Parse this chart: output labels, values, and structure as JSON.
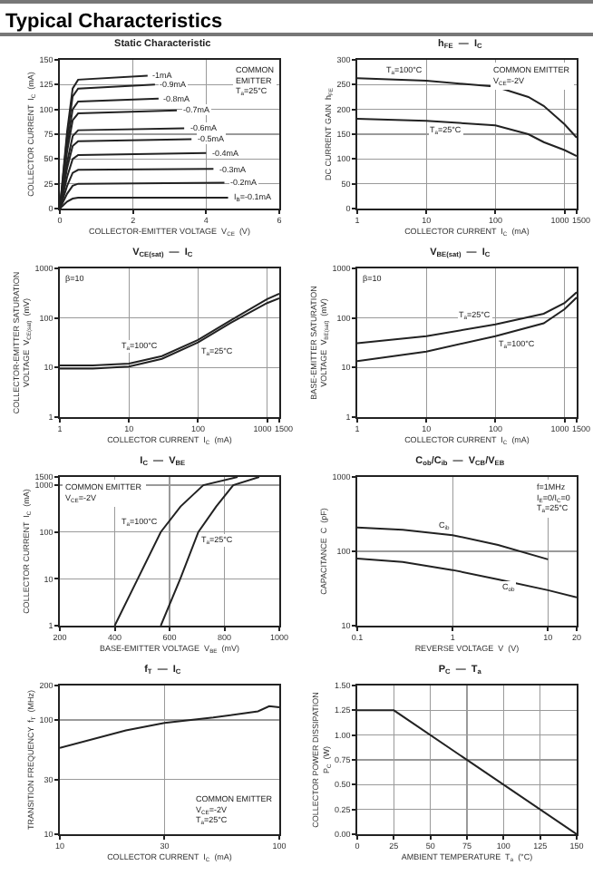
{
  "chart_data": [
    {
      "type": "other",
      "title": "Typical Characteristics"
    },
    {
      "type": "line",
      "title": "Static Characteristic",
      "xlabel": "COLLECTOR-EMITTER VOLTAGE  V$_{CE}$  (V)",
      "ylabel": "COLLECTOR CURRENT  I$_{C}$  (mA)",
      "xlim": [
        0,
        6
      ],
      "xticks": [
        0,
        2,
        4,
        6
      ],
      "ylim": [
        0,
        150
      ],
      "yticks": [
        0,
        25,
        50,
        75,
        100,
        125,
        150
      ],
      "grid": true,
      "marker": "none",
      "series": [
        {
          "color": "#222222",
          "x": [
            0,
            0.2,
            0.35,
            0.5,
            2.4
          ],
          "values": [
            0,
            78,
            121,
            130,
            134
          ]
        },
        {
          "color": "#222222",
          "x": [
            0,
            0.2,
            0.35,
            0.5,
            2.6
          ],
          "values": [
            0,
            73,
            113,
            121,
            125
          ]
        },
        {
          "color": "#222222",
          "x": [
            0,
            0.2,
            0.35,
            0.5,
            2.7
          ],
          "values": [
            0,
            65,
            100,
            108,
            111
          ]
        },
        {
          "color": "#222222",
          "x": [
            0,
            0.2,
            0.35,
            0.5,
            3.2
          ],
          "values": [
            0,
            58,
            89,
            96,
            99
          ]
        },
        {
          "color": "#222222",
          "x": [
            0,
            0.2,
            0.35,
            0.5,
            3.4
          ],
          "values": [
            0,
            47,
            73,
            79,
            81
          ]
        },
        {
          "color": "#222222",
          "x": [
            0,
            0.2,
            0.35,
            0.5,
            3.6
          ],
          "values": [
            0,
            41,
            63,
            68,
            70
          ]
        },
        {
          "color": "#222222",
          "x": [
            0,
            0.2,
            0.35,
            0.5,
            4.0
          ],
          "values": [
            0,
            32,
            50,
            54,
            56
          ]
        },
        {
          "color": "#222222",
          "x": [
            0,
            0.2,
            0.35,
            0.5,
            4.2
          ],
          "values": [
            0,
            23,
            36,
            39,
            40
          ]
        },
        {
          "color": "#222222",
          "x": [
            0,
            0.2,
            0.35,
            0.5,
            4.5
          ],
          "values": [
            0,
            15,
            23,
            25,
            26
          ]
        },
        {
          "color": "#222222",
          "x": [
            0,
            0.2,
            0.35,
            0.5,
            4.6
          ],
          "values": [
            0,
            7,
            10,
            11,
            11
          ]
        }
      ],
      "annotations": [
        "COMMON\nEMITTER\nT$_{a}$=25°C",
        {
          "text": "-1mA",
          "x": 2.4,
          "y": 134
        },
        {
          "text": "-0.9mA",
          "x": 2.6,
          "y": 125
        },
        {
          "text": "-0.8mA",
          "x": 2.7,
          "y": 111
        },
        {
          "text": "-0.7mA",
          "x": 3.2,
          "y": 99
        },
        {
          "text": "-0.6mA",
          "x": 3.4,
          "y": 81
        },
        {
          "text": "-0.5mA",
          "x": 3.6,
          "y": 70
        },
        {
          "text": "-0.4mA",
          "x": 4.0,
          "y": 56
        },
        {
          "text": "-0.3mA",
          "x": 4.2,
          "y": 40
        },
        {
          "text": "-0.2mA",
          "x": 4.5,
          "y": 26
        },
        {
          "text": "I$_{B}$=-0.1mA",
          "x": 4.6,
          "y": 11
        }
      ]
    },
    {
      "type": "line",
      "title": "h$_{FE}$  —  I$_{C}$",
      "xlabel": "COLLECTOR CURRENT  I$_{C}$  (mA)",
      "ylabel": "DC CURRENT GAIN  h$_{FE}$",
      "log": "x",
      "xlim": [
        1,
        1500
      ],
      "xticks": [
        1,
        10,
        100,
        1000,
        1500
      ],
      "ylim": [
        0,
        300
      ],
      "yticks": [
        0,
        50,
        100,
        150,
        200,
        250,
        300
      ],
      "grid": true,
      "marker": "none",
      "series": [
        {
          "color": "#222222",
          "x": [
            1,
            10,
            100,
            300,
            500,
            1000,
            1500
          ],
          "values": [
            263,
            258,
            246,
            225,
            207,
            170,
            143
          ]
        },
        {
          "color": "#222222",
          "x": [
            1,
            10,
            100,
            300,
            500,
            1000,
            1500
          ],
          "values": [
            181,
            177,
            168,
            150,
            134,
            118,
            106
          ]
        }
      ],
      "annotations": [
        "COMMON EMITTER\nV$_{CE}$=-2V",
        {
          "text": "T$_{a}$=100°C",
          "x": 10,
          "y": 258
        },
        {
          "text": "T$_{a}$=25°C",
          "x": 10,
          "y": 177
        }
      ]
    },
    {
      "type": "line",
      "title": "V$_{CE(sat)}$  —  I$_{C}$",
      "xlabel": "COLLECTOR CURRENT  I$_{C}$  (mA)",
      "ylabel": "COLLECTOR-EMITTER SATURATION\nVOLTAGE  V$_{CE(sat)}$  (mV)",
      "log": "xy",
      "xlim": [
        1,
        1500
      ],
      "xticks": [
        1,
        10,
        100,
        1000,
        1500
      ],
      "ylim": [
        1,
        1000
      ],
      "yticks": [
        1,
        10,
        100,
        1000
      ],
      "grid": true,
      "marker": "none",
      "series": [
        {
          "color": "#222222",
          "x": [
            1,
            3,
            10,
            30,
            100,
            300,
            1000,
            1500
          ],
          "values": [
            11,
            11,
            12,
            17,
            36,
            90,
            240,
            310
          ]
        },
        {
          "color": "#222222",
          "x": [
            1,
            3,
            10,
            30,
            100,
            300,
            1000,
            1500
          ],
          "values": [
            9.5,
            9.5,
            10.5,
            15,
            32,
            80,
            200,
            250
          ]
        }
      ],
      "annotations": [
        "β=10",
        {
          "text": "T$_{a}$=100°C",
          "x": 30,
          "y": 17
        },
        {
          "text": "T$_{a}$=25°C",
          "x": 100,
          "y": 32
        }
      ]
    },
    {
      "type": "line",
      "title": "V$_{BE(sat)}$  —  I$_{C}$",
      "xlabel": "COLLECTOR CURRENT  I$_{C}$  (mA)",
      "ylabel": "BASE-EMITTER SATURATION\nVOLTAGE  V$_{BE(sat)}$  (mV)",
      "log": "xy",
      "xlim": [
        1,
        1500
      ],
      "xticks": [
        1,
        10,
        100,
        1000,
        1500
      ],
      "ylim": [
        1,
        1000
      ],
      "yticks": [
        1,
        10,
        100,
        1000
      ],
      "grid": true,
      "marker": "none",
      "series": [
        {
          "color": "#222222",
          "x": [
            1,
            10,
            100,
            500,
            1000,
            1500
          ],
          "values": [
            31,
            43,
            74,
            122,
            200,
            330
          ]
        },
        {
          "color": "#222222",
          "x": [
            1,
            10,
            100,
            500,
            1000,
            1500
          ],
          "values": [
            13.5,
            21,
            43,
            78,
            150,
            260
          ]
        }
      ],
      "annotations": [
        "β=10",
        {
          "text": "T$_{a}$=25°C",
          "x": 100,
          "y": 74
        },
        {
          "text": "T$_{a}$=100°C",
          "x": 100,
          "y": 43
        }
      ]
    },
    {
      "type": "line",
      "title": "I$_{C}$  —  V$_{BE}$",
      "xlabel": "BASE-EMITTER VOLTAGE  V$_{BE}$  (mV)",
      "ylabel": "COLLECTOR CURRENT  I$_{C}$  (mA)",
      "log": "y",
      "xlim": [
        200,
        1000
      ],
      "xticks": [
        200,
        400,
        600,
        800,
        1000
      ],
      "ylim": [
        1,
        1500
      ],
      "yticks": [
        1,
        10,
        100,
        1000,
        1500
      ],
      "grid": true,
      "marker": "none",
      "series": [
        {
          "color": "#222222",
          "x": [
            400,
            484,
            568,
            640,
            723,
            848
          ],
          "values": [
            1,
            10,
            100,
            350,
            1000,
            1500
          ]
        },
        {
          "color": "#222222",
          "x": [
            568,
            639,
            705,
            770,
            832,
            927
          ],
          "values": [
            1,
            10,
            100,
            350,
            1000,
            1500
          ]
        }
      ],
      "annotations": [
        "COMMON EMITTER\nV$_{CE}$=-2V",
        {
          "text": "T$_{a}$=100°C",
          "x": 568,
          "y": 100
        },
        {
          "text": "T$_{a}$=25°C",
          "x": 705,
          "y": 100
        }
      ]
    },
    {
      "type": "line",
      "title": "C$_{ob}$/C$_{ib}$  —  V$_{CB}$/V$_{EB}$",
      "xlabel": "REVERSE VOLTAGE  V  (V)",
      "ylabel": "CAPACITANCE  C  (pF)",
      "log": "xy",
      "xlim": [
        0.1,
        20
      ],
      "xticks": [
        0.1,
        1,
        10,
        20
      ],
      "ylim": [
        10,
        1000
      ],
      "yticks": [
        10,
        100,
        1000
      ],
      "grid": true,
      "marker": "none",
      "series": [
        {
          "color": "#222222",
          "x": [
            0.1,
            0.3,
            1,
            3,
            10
          ],
          "values": [
            209,
            195,
            165,
            122,
            78
          ]
        },
        {
          "color": "#222222",
          "x": [
            0.1,
            0.3,
            1,
            3,
            10,
            20
          ],
          "values": [
            80,
            72,
            56,
            42,
            30,
            24
          ]
        }
      ],
      "annotations": [
        "f=1MHz\nI$_{E}$=0/I$_{C}$=0\nT$_{a}$=25°C",
        {
          "text": "C$_{ib}$",
          "x": 1,
          "y": 165
        },
        {
          "text": "C$_{ob}$",
          "x": 3,
          "y": 42
        }
      ]
    },
    {
      "type": "line",
      "title": "f$_{T}$  —  I$_{C}$",
      "xlabel": "COLLECTOR CURRENT  I$_{C}$  (mA)",
      "ylabel": "TRANSITION FREQUENCY  f$_{T}$  (MHz)",
      "log": "xy",
      "xlim": [
        10,
        100
      ],
      "xticks": [
        10,
        30,
        100
      ],
      "ylim": [
        10,
        200
      ],
      "yticks": [
        10,
        30,
        100,
        200
      ],
      "grid": true,
      "marker": "none",
      "series": [
        {
          "color": "#222222",
          "x": [
            10,
            20,
            30,
            50,
            80,
            90,
            100
          ],
          "values": [
            57,
            81,
            94,
            105,
            119,
            132,
            129
          ]
        }
      ],
      "annotations": [
        "COMMON EMITTER\nV$_{CE}$=-2V\nT$_{a}$=25°C"
      ]
    },
    {
      "type": "line",
      "title": "P$_{C}$  —  T$_{a}$",
      "xlabel": "AMBIENT TEMPERATURE  T$_{a}$  (°C)",
      "ylabel": "COLLECTOR POWER DISSIPATION\nP$_{C}$  (W)",
      "xlim": [
        0,
        150
      ],
      "xticks": [
        0,
        25,
        50,
        75,
        100,
        125,
        150
      ],
      "ylim": [
        0,
        1.5
      ],
      "yticks": [
        {
          "value": 0,
          "label": "0.00"
        },
        {
          "value": 0.25,
          "label": "0.25"
        },
        {
          "value": 0.5,
          "label": "0.50"
        },
        {
          "value": 0.75,
          "label": "0.75"
        },
        {
          "value": 1,
          "label": "1.00"
        },
        {
          "value": 1.25,
          "label": "1.25"
        },
        {
          "value": 1.5,
          "label": "1.50"
        }
      ],
      "grid": true,
      "marker": "none",
      "series": [
        {
          "color": "#222222",
          "x": [
            0,
            25,
            150
          ],
          "values": [
            1.25,
            1.25,
            0
          ]
        }
      ]
    }
  ]
}
